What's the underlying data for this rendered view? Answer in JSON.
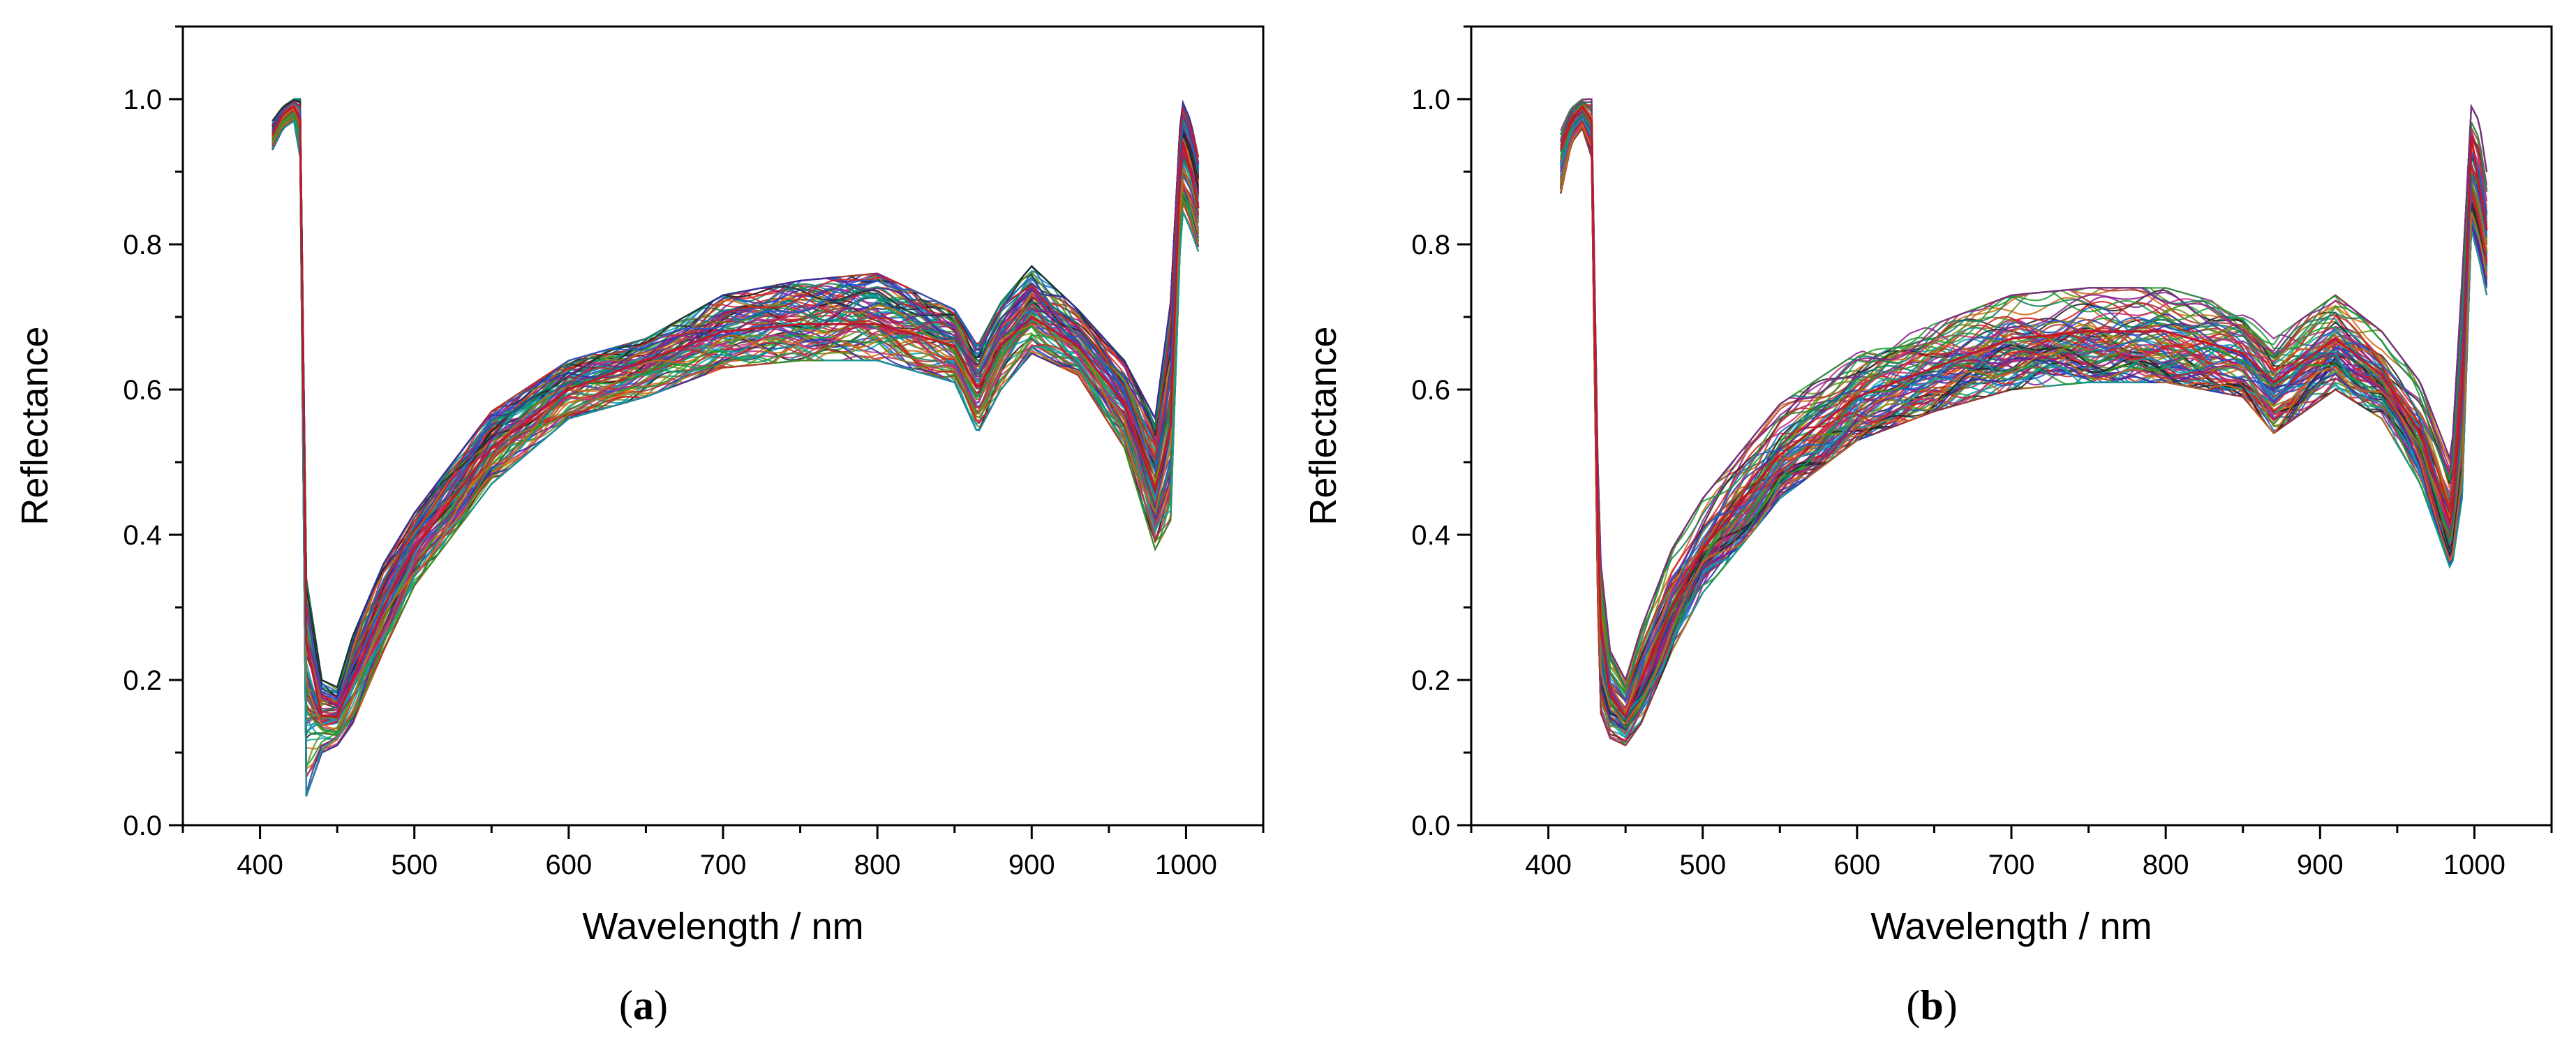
{
  "chart_data": [
    {
      "type": "line",
      "panel_label": "a",
      "caption_open": "(",
      "caption_close": ")",
      "xlabel": "Wavelength / nm",
      "ylabel": "Reflectance",
      "xlim": [
        350,
        1050
      ],
      "ylim": [
        0.0,
        1.1
      ],
      "xticks": [
        400,
        500,
        600,
        700,
        800,
        900,
        1000
      ],
      "xtick_labels": [
        "400",
        "500",
        "600",
        "700",
        "800",
        "900",
        "1000"
      ],
      "yticks": [
        0.0,
        0.2,
        0.4,
        0.6,
        0.8,
        1.0
      ],
      "ytick_labels": [
        "0.0",
        "0.2",
        "0.4",
        "0.6",
        "0.8",
        "1.0"
      ],
      "grid": false,
      "series_count_note": "many overlapping spectra (approx. 100 curves)",
      "representative_spectrum": {
        "x": [
          408,
          415,
          422,
          426,
          430,
          440,
          450,
          460,
          480,
          500,
          550,
          600,
          650,
          700,
          750,
          800,
          850,
          865,
          880,
          900,
          930,
          960,
          980,
          990,
          997,
          1003,
          1008
        ],
        "y": [
          0.95,
          0.98,
          0.99,
          0.97,
          0.25,
          0.15,
          0.15,
          0.2,
          0.3,
          0.38,
          0.52,
          0.6,
          0.64,
          0.68,
          0.69,
          0.69,
          0.66,
          0.6,
          0.66,
          0.7,
          0.66,
          0.58,
          0.46,
          0.55,
          0.95,
          0.9,
          0.85
        ]
      },
      "envelope": {
        "x": [
          408,
          415,
          422,
          426,
          430,
          440,
          450,
          460,
          480,
          500,
          550,
          600,
          650,
          700,
          750,
          800,
          850,
          865,
          880,
          900,
          930,
          960,
          980,
          990,
          997,
          1003,
          1008
        ],
        "ymin": [
          0.93,
          0.96,
          0.97,
          0.92,
          0.04,
          0.1,
          0.11,
          0.14,
          0.24,
          0.33,
          0.47,
          0.56,
          0.59,
          0.63,
          0.64,
          0.64,
          0.61,
          0.54,
          0.6,
          0.65,
          0.62,
          0.52,
          0.38,
          0.42,
          0.85,
          0.82,
          0.79
        ],
        "ymax": [
          0.97,
          0.99,
          1.0,
          1.0,
          0.34,
          0.2,
          0.19,
          0.26,
          0.36,
          0.43,
          0.57,
          0.64,
          0.67,
          0.73,
          0.75,
          0.76,
          0.71,
          0.66,
          0.72,
          0.77,
          0.71,
          0.64,
          0.56,
          0.72,
          1.0,
          0.97,
          0.92
        ]
      }
    },
    {
      "type": "line",
      "panel_label": "b",
      "caption_open": "(",
      "caption_close": ")",
      "xlabel": "Wavelength / nm",
      "ylabel": "Reflectance",
      "xlim": [
        350,
        1050
      ],
      "ylim": [
        0.0,
        1.1
      ],
      "xticks": [
        400,
        500,
        600,
        700,
        800,
        900,
        1000
      ],
      "xtick_labels": [
        "400",
        "500",
        "600",
        "700",
        "800",
        "900",
        "1000"
      ],
      "yticks": [
        0.0,
        0.2,
        0.4,
        0.6,
        0.8,
        1.0
      ],
      "ytick_labels": [
        "0.0",
        "0.2",
        "0.4",
        "0.6",
        "0.8",
        "1.0"
      ],
      "grid": false,
      "series_count_note": "many overlapping spectra (approx. 100 curves)",
      "representative_spectrum": {
        "x": [
          408,
          415,
          422,
          428,
          433,
          440,
          450,
          460,
          480,
          500,
          550,
          600,
          650,
          700,
          750,
          800,
          850,
          870,
          890,
          910,
          940,
          965,
          985,
          992,
          998,
          1003,
          1008
        ],
        "y": [
          0.93,
          0.97,
          0.99,
          0.97,
          0.28,
          0.18,
          0.15,
          0.2,
          0.3,
          0.38,
          0.51,
          0.59,
          0.63,
          0.67,
          0.68,
          0.68,
          0.65,
          0.61,
          0.64,
          0.67,
          0.62,
          0.54,
          0.41,
          0.6,
          0.95,
          0.88,
          0.82
        ]
      },
      "envelope": {
        "x": [
          408,
          415,
          422,
          428,
          433,
          440,
          450,
          460,
          480,
          500,
          550,
          600,
          650,
          700,
          750,
          800,
          850,
          870,
          890,
          910,
          940,
          965,
          985,
          992,
          998,
          1003,
          1008
        ],
        "ymin": [
          0.87,
          0.94,
          0.96,
          0.92,
          0.16,
          0.12,
          0.11,
          0.14,
          0.24,
          0.32,
          0.45,
          0.53,
          0.57,
          0.6,
          0.61,
          0.61,
          0.59,
          0.54,
          0.57,
          0.6,
          0.56,
          0.47,
          0.35,
          0.45,
          0.82,
          0.78,
          0.73
        ],
        "ymax": [
          0.96,
          0.99,
          1.0,
          1.0,
          0.38,
          0.24,
          0.2,
          0.27,
          0.38,
          0.45,
          0.58,
          0.65,
          0.69,
          0.73,
          0.74,
          0.74,
          0.71,
          0.67,
          0.7,
          0.73,
          0.68,
          0.61,
          0.5,
          0.75,
          0.99,
          0.97,
          0.9
        ]
      }
    }
  ],
  "palette": [
    "#d11f1f",
    "#1f5bd1",
    "#1a9a2e",
    "#8b1d8f",
    "#0a9fa8",
    "#d06a12",
    "#222222",
    "#c22d7e",
    "#6b8f1a",
    "#2e2ea8",
    "#b03030",
    "#117a65"
  ]
}
